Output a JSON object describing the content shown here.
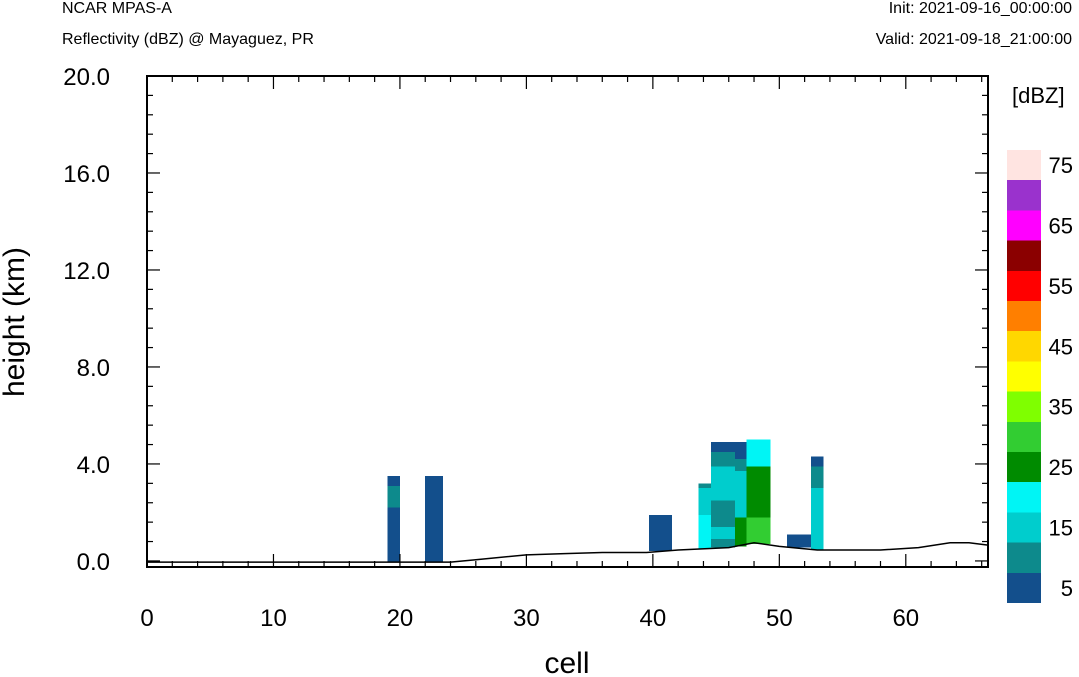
{
  "header": {
    "model": "NCAR MPAS-A",
    "field": "Reflectivity (dBZ) @ Mayaguez, PR",
    "init": "Init: 2021-09-16_00:00:00",
    "valid": "Valid: 2021-09-18_21:00:00"
  },
  "chart_data": {
    "type": "heatmap",
    "xlabel": "cell",
    "ylabel": "height (km)",
    "xlim": [
      0,
      66.5
    ],
    "ylim": [
      -0.25,
      20.0
    ],
    "x_ticks": [
      "0",
      "10",
      "20",
      "30",
      "40",
      "50",
      "60"
    ],
    "y_ticks": [
      "0.0",
      "4.0",
      "8.0",
      "12.0",
      "16.0",
      "20.0"
    ],
    "colorbar": {
      "title": "[dBZ]",
      "labels": [
        "5",
        "15",
        "25",
        "35",
        "45",
        "55",
        "65",
        "75"
      ],
      "levels": [
        0,
        10,
        15,
        20,
        25,
        30,
        35,
        40,
        45,
        50,
        55,
        60,
        65,
        70,
        75
      ],
      "colors": [
        "#134f8c",
        "#0d8a8c",
        "#00cdcd",
        "#00f5f5",
        "#008b00",
        "#32cd32",
        "#7fff00",
        "#ffff00",
        "#ffd700",
        "#ff7f00",
        "#ff0000",
        "#8b0000",
        "#ff00ff",
        "#9a32cd",
        "#ffe4e1"
      ]
    },
    "terrain": [
      [
        0,
        -0.05
      ],
      [
        18,
        -0.05
      ],
      [
        24,
        -0.05
      ],
      [
        26,
        0.05
      ],
      [
        30,
        0.25
      ],
      [
        33,
        0.3
      ],
      [
        36,
        0.35
      ],
      [
        39.5,
        0.35
      ],
      [
        42,
        0.45
      ],
      [
        46,
        0.55
      ],
      [
        48,
        0.75
      ],
      [
        50,
        0.6
      ],
      [
        53,
        0.45
      ],
      [
        58,
        0.45
      ],
      [
        61,
        0.55
      ],
      [
        63.5,
        0.75
      ],
      [
        65,
        0.75
      ],
      [
        66.5,
        0.65
      ]
    ],
    "cells": [
      {
        "x": [
          19,
          20
        ],
        "y": [
          -0.05,
          2.2
        ],
        "dbz": 5
      },
      {
        "x": [
          19,
          20
        ],
        "y": [
          2.2,
          3.1
        ],
        "dbz": 10
      },
      {
        "x": [
          19,
          20
        ],
        "y": [
          3.1,
          3.5
        ],
        "dbz": 5
      },
      {
        "x": [
          22,
          23.4
        ],
        "y": [
          -0.05,
          3.5
        ],
        "dbz": 5
      },
      {
        "x": [
          39.7,
          41.5
        ],
        "y": [
          0.4,
          1.9
        ],
        "dbz": 5
      },
      {
        "x": [
          43.6,
          44.6
        ],
        "y": [
          0.5,
          1.9
        ],
        "dbz": 20
      },
      {
        "x": [
          43.6,
          44.6
        ],
        "y": [
          1.9,
          3.0
        ],
        "dbz": 15
      },
      {
        "x": [
          43.6,
          44.6
        ],
        "y": [
          3.0,
          3.2
        ],
        "dbz": 10
      },
      {
        "x": [
          44.6,
          46.5
        ],
        "y": [
          0.55,
          0.9
        ],
        "dbz": 10
      },
      {
        "x": [
          44.6,
          46.5
        ],
        "y": [
          0.9,
          1.4
        ],
        "dbz": 15
      },
      {
        "x": [
          44.6,
          46.5
        ],
        "y": [
          1.4,
          2.5
        ],
        "dbz": 10
      },
      {
        "x": [
          44.6,
          46.5
        ],
        "y": [
          2.5,
          3.9
        ],
        "dbz": 15
      },
      {
        "x": [
          44.6,
          46.5
        ],
        "y": [
          3.9,
          4.5
        ],
        "dbz": 10
      },
      {
        "x": [
          44.6,
          46.5
        ],
        "y": [
          4.5,
          4.9
        ],
        "dbz": 5
      },
      {
        "x": [
          46.5,
          47.4
        ],
        "y": [
          0.6,
          1.8
        ],
        "dbz": 25
      },
      {
        "x": [
          46.5,
          47.4
        ],
        "y": [
          1.8,
          3.7
        ],
        "dbz": 15
      },
      {
        "x": [
          46.5,
          47.4
        ],
        "y": [
          3.7,
          4.2
        ],
        "dbz": 10
      },
      {
        "x": [
          46.5,
          47.4
        ],
        "y": [
          4.2,
          4.9
        ],
        "dbz": 5
      },
      {
        "x": [
          47.4,
          49.3
        ],
        "y": [
          0.7,
          1.8
        ],
        "dbz": 30
      },
      {
        "x": [
          47.4,
          49.3
        ],
        "y": [
          1.8,
          3.9
        ],
        "dbz": 25
      },
      {
        "x": [
          47.4,
          49.3
        ],
        "y": [
          3.9,
          5.0
        ],
        "dbz": 20
      },
      {
        "x": [
          50.6,
          52.5
        ],
        "y": [
          0.55,
          1.1
        ],
        "dbz": 5
      },
      {
        "x": [
          52.5,
          53.5
        ],
        "y": [
          0.45,
          3.0
        ],
        "dbz": 15
      },
      {
        "x": [
          52.5,
          53.5
        ],
        "y": [
          3.0,
          3.9
        ],
        "dbz": 10
      },
      {
        "x": [
          52.5,
          53.5
        ],
        "y": [
          3.9,
          4.3
        ],
        "dbz": 5
      }
    ]
  }
}
